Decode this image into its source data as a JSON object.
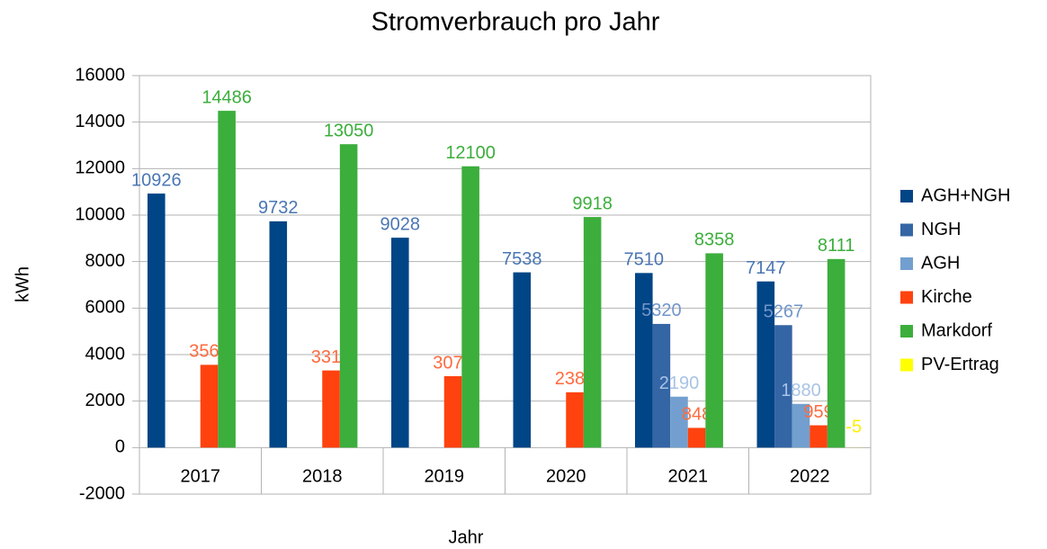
{
  "chart_data": {
    "type": "bar",
    "title": "Stromverbrauch pro Jahr",
    "x_label": "Jahr",
    "y_label": "kWh",
    "categories": [
      "2017",
      "2018",
      "2019",
      "2020",
      "2021",
      "2022"
    ],
    "series": [
      {
        "name": "AGH+NGH",
        "color": "#004586",
        "label_color": "#4a76b4",
        "values": [
          10926,
          9732,
          9028,
          7538,
          7510,
          7147
        ]
      },
      {
        "name": "NGH",
        "color": "#3465a4",
        "label_color": "#7196cb",
        "values": [
          null,
          null,
          null,
          null,
          5320,
          5267
        ]
      },
      {
        "name": "AGH",
        "color": "#729fcf",
        "label_color": "#a8c3e5",
        "values": [
          null,
          null,
          null,
          null,
          2190,
          1880
        ]
      },
      {
        "name": "Kirche",
        "color": "#ff420e",
        "label_color": "#ff6a3e",
        "values": [
          3560,
          3318,
          3072,
          2380,
          848,
          959
        ]
      },
      {
        "name": "Markdorf",
        "color": "#3cae3c",
        "label_color": "#3cae3c",
        "values": [
          14486,
          13050,
          12100,
          9918,
          8358,
          8111
        ]
      },
      {
        "name": "PV-Ertrag",
        "color": "#ffff00",
        "label_color": "#ffee00",
        "values": [
          null,
          null,
          null,
          null,
          null,
          -5
        ]
      }
    ],
    "ylim": [
      -2000,
      16000
    ],
    "yticks": [
      -2000,
      0,
      2000,
      4000,
      6000,
      8000,
      10000,
      12000,
      14000,
      16000
    ],
    "grid": true,
    "legend": "right"
  }
}
